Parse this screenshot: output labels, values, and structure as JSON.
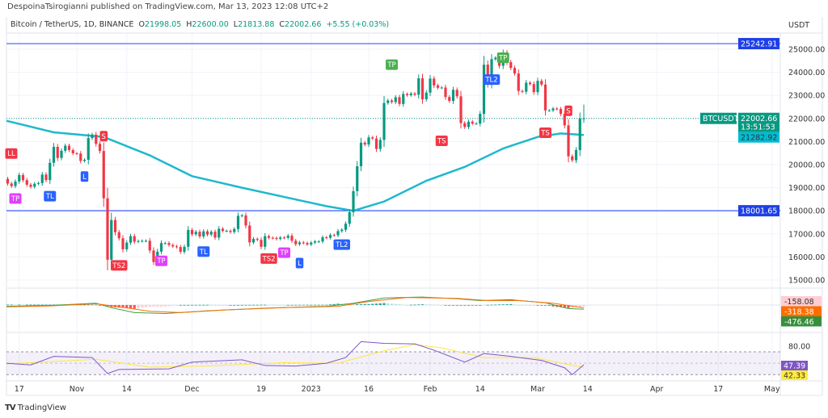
{
  "publisher_line": "DespoinaTsirogianni published on TradingView.com, Mar 13, 2023 12:08 UTC+2",
  "header": {
    "symbol": "Bitcoin / TetherUS, 1D, BINANCE",
    "open_label": "O",
    "open": "21998.05",
    "high_label": "H",
    "high": "22600.00",
    "low_label": "L",
    "low": "21813.88",
    "close_label": "C",
    "close": "22002.66",
    "change": "+5.55 (+0.03%)"
  },
  "footer": {
    "brand": "TradingView"
  },
  "colors": {
    "up": "#089981",
    "down": "#f23645",
    "ma": "#1fb8cd",
    "hline": "#3d5afe",
    "macd": "#43a047",
    "signal": "#ff6d00",
    "rsi": "#7e57c2",
    "rsi_ma": "#ffe642"
  },
  "chart_data": {
    "type": "candlestick",
    "currency_label": "USDT",
    "start_date": "2022-10-12",
    "close": [
      19150,
      19380,
      19180,
      19070,
      19270,
      19550,
      19330,
      19130,
      19040,
      19170,
      19200,
      19570,
      19330,
      20080,
      20770,
      20290,
      20600,
      20820,
      20630,
      20490,
      20480,
      20160,
      20210,
      21150,
      21300,
      20900,
      20590,
      18540,
      15880,
      17600,
      17070,
      16810,
      16330,
      16620,
      16900,
      16660,
      16690,
      16700,
      16700,
      16280,
      15780,
      16230,
      16600,
      16600,
      16520,
      16460,
      16430,
      16220,
      16440,
      17170,
      16980,
      17090,
      16890,
      17110,
      16970,
      17090,
      16840,
      17220,
      17130,
      17130,
      17080,
      17210,
      17780,
      17800,
      17360,
      16630,
      16780,
      16740,
      16440,
      16900,
      16830,
      16820,
      16780,
      16840,
      16830,
      16920,
      16700,
      16550,
      16630,
      16600,
      16540,
      16620,
      16670,
      16670,
      16850,
      16830,
      16950,
      16940,
      17120,
      17180,
      17440,
      17940,
      18850,
      19930,
      20950,
      20870,
      21180,
      21130,
      20680,
      21070,
      22670,
      22780,
      22710,
      22920,
      22630,
      23060,
      23010,
      23080,
      23030,
      23740,
      22830,
      23120,
      23730,
      23430,
      23330,
      23340,
      22930,
      22760,
      23240,
      22960,
      21800,
      21630,
      21860,
      21780,
      21780,
      22200,
      24330,
      23520,
      24570,
      24630,
      24280,
      24840,
      24440,
      24190,
      23950,
      23190,
      23160,
      23550,
      23490,
      23140,
      23630,
      23470,
      22350,
      22350,
      22430,
      22410,
      22200,
      21700,
      20360,
      20190,
      20630,
      21990,
      22002.66
    ],
    "last_bar": {
      "open": 21998.05,
      "high": 22600.0,
      "low": 21813.88,
      "close": 22002.66
    },
    "moving_average": [
      [
        "2022-10-12",
        21900
      ],
      [
        "2022-10-26",
        21400
      ],
      [
        "2022-11-08",
        21200
      ],
      [
        "2022-11-20",
        20400
      ],
      [
        "2022-12-01",
        19500
      ],
      [
        "2022-12-14",
        19000
      ],
      [
        "2022-12-25",
        18600
      ],
      [
        "2023-01-05",
        18200
      ],
      [
        "2023-01-12",
        18000
      ],
      [
        "2023-01-20",
        18400
      ],
      [
        "2023-01-31",
        19300
      ],
      [
        "2023-02-10",
        19900
      ],
      [
        "2023-02-20",
        20700
      ],
      [
        "2023-03-01",
        21200
      ],
      [
        "2023-03-07",
        21350
      ],
      [
        "2023-03-13",
        21282.92
      ]
    ],
    "y_ticks": [
      "25000.00",
      "24000.00",
      "23000.00",
      "22000.00",
      "21000.00",
      "20000.00",
      "19000.00",
      "18000.00",
      "17000.00",
      "16000.00",
      "15000.00"
    ],
    "horizontal_lines": [
      {
        "price": 25242.91,
        "label": "25242.91"
      },
      {
        "price": 18001.65,
        "label": "18001.65"
      }
    ],
    "price_tag": {
      "symbol": "BTCUSDT",
      "price": "22002.66",
      "countdown": "13:51:53",
      "ma_value": "21282.92"
    },
    "markers": [
      {
        "date": "2022-10-13",
        "price": 20500,
        "text": "LL",
        "color": "#f23645"
      },
      {
        "date": "2022-10-16",
        "price": 18550,
        "text": "TP",
        "color": "#e040fb"
      },
      {
        "date": "2022-10-25",
        "price": 18650,
        "text": "TL",
        "color": "#2962ff"
      },
      {
        "date": "2022-11-03",
        "price": 19500,
        "text": "L",
        "color": "#2962ff"
      },
      {
        "date": "2022-11-08",
        "price": 21250,
        "text": "S",
        "color": "#f23645"
      },
      {
        "date": "2022-11-12",
        "price": 15650,
        "text": "TS2",
        "color": "#f23645"
      },
      {
        "date": "2022-11-23",
        "price": 15850,
        "text": "TP",
        "color": "#e040fb"
      },
      {
        "date": "2022-12-04",
        "price": 16250,
        "text": "TL",
        "color": "#2962ff"
      },
      {
        "date": "2022-12-21",
        "price": 15950,
        "text": "TS2",
        "color": "#f23645"
      },
      {
        "date": "2022-12-25",
        "price": 16200,
        "text": "TP",
        "color": "#e040fb"
      },
      {
        "date": "2022-12-29",
        "price": 15750,
        "text": "L",
        "color": "#2962ff"
      },
      {
        "date": "2023-01-09",
        "price": 16550,
        "text": "TL2",
        "color": "#2962ff"
      },
      {
        "date": "2023-01-22",
        "price": 24350,
        "text": "TP",
        "color": "#4caf50"
      },
      {
        "date": "2023-02-04",
        "price": 21050,
        "text": "TS",
        "color": "#f23645"
      },
      {
        "date": "2023-02-17",
        "price": 23700,
        "text": "TL2",
        "color": "#2962ff"
      },
      {
        "date": "2023-02-20",
        "price": 24650,
        "text": "TP",
        "color": "#4caf50"
      },
      {
        "date": "2023-03-03",
        "price": 21400,
        "text": "TS",
        "color": "#f23645"
      },
      {
        "date": "2023-03-09",
        "price": 22350,
        "text": "S",
        "color": "#f23645"
      }
    ],
    "macd": {
      "macd_line": [
        [
          "2022-10-12",
          -150
        ],
        [
          "2022-10-25",
          -50
        ],
        [
          "2022-11-06",
          200
        ],
        [
          "2022-11-10",
          -300
        ],
        [
          "2022-11-16",
          -850
        ],
        [
          "2022-11-24",
          -950
        ],
        [
          "2022-12-05",
          -650
        ],
        [
          "2022-12-20",
          -350
        ],
        [
          "2023-01-05",
          -150
        ],
        [
          "2023-01-12",
          200
        ],
        [
          "2023-01-20",
          800
        ],
        [
          "2023-01-30",
          900
        ],
        [
          "2023-02-08",
          700
        ],
        [
          "2023-02-14",
          500
        ],
        [
          "2023-02-22",
          600
        ],
        [
          "2023-03-03",
          250
        ],
        [
          "2023-03-09",
          -400
        ],
        [
          "2023-03-13",
          -476.46
        ]
      ],
      "signal_line": [
        [
          "2022-10-12",
          -200
        ],
        [
          "2022-10-25",
          -100
        ],
        [
          "2022-11-06",
          150
        ],
        [
          "2022-11-12",
          -200
        ],
        [
          "2022-11-20",
          -700
        ],
        [
          "2022-11-28",
          -850
        ],
        [
          "2022-12-10",
          -550
        ],
        [
          "2022-12-25",
          -300
        ],
        [
          "2023-01-08",
          -150
        ],
        [
          "2023-01-16",
          400
        ],
        [
          "2023-01-26",
          850
        ],
        [
          "2023-02-08",
          750
        ],
        [
          "2023-02-16",
          500
        ],
        [
          "2023-02-24",
          500
        ],
        [
          "2023-03-05",
          200
        ],
        [
          "2023-03-13",
          -318.38
        ]
      ],
      "histogram_last": -158.08,
      "values": [
        "-158.08",
        "-318.38",
        "-476.46"
      ]
    },
    "rsi": {
      "rsi_line": [
        [
          "2022-10-12",
          50
        ],
        [
          "2022-10-20",
          47
        ],
        [
          "2022-10-26",
          62
        ],
        [
          "2022-11-05",
          60
        ],
        [
          "2022-11-09",
          32
        ],
        [
          "2022-11-12",
          39
        ],
        [
          "2022-11-25",
          40
        ],
        [
          "2022-12-01",
          52
        ],
        [
          "2022-12-14",
          56
        ],
        [
          "2022-12-20",
          46
        ],
        [
          "2022-12-28",
          45
        ],
        [
          "2023-01-05",
          50
        ],
        [
          "2023-01-10",
          60
        ],
        [
          "2023-01-14",
          88
        ],
        [
          "2023-01-20",
          85
        ],
        [
          "2023-01-28",
          84
        ],
        [
          "2023-02-02",
          73
        ],
        [
          "2023-02-10",
          52
        ],
        [
          "2023-02-15",
          67
        ],
        [
          "2023-02-22",
          62
        ],
        [
          "2023-03-02",
          55
        ],
        [
          "2023-03-08",
          42
        ],
        [
          "2023-03-10",
          30
        ],
        [
          "2023-03-13",
          47.39
        ]
      ],
      "rsi_ma": [
        [
          "2022-10-12",
          49
        ],
        [
          "2022-11-06",
          57
        ],
        [
          "2022-11-20",
          43
        ],
        [
          "2022-12-05",
          45
        ],
        [
          "2022-12-25",
          51
        ],
        [
          "2023-01-08",
          50
        ],
        [
          "2023-01-20",
          72
        ],
        [
          "2023-01-28",
          83
        ],
        [
          "2023-02-04",
          77
        ],
        [
          "2023-02-15",
          60
        ],
        [
          "2023-02-28",
          60
        ],
        [
          "2023-03-13",
          42.33
        ]
      ],
      "bands": [
        70,
        50,
        30
      ],
      "tick": "80.00",
      "values": [
        "47.39",
        "42.33"
      ]
    },
    "x_ticks": [
      [
        "17",
        "2022-10-17"
      ],
      [
        "Nov",
        "2022-11-01"
      ],
      [
        "14",
        "2022-11-14"
      ],
      [
        "Dec",
        "2022-12-01"
      ],
      [
        "19",
        "2022-12-19"
      ],
      [
        "2023",
        "2023-01-01"
      ],
      [
        "16",
        "2023-01-16"
      ],
      [
        "Feb",
        "2023-02-01"
      ],
      [
        "14",
        "2023-02-14"
      ],
      [
        "Mar",
        "2023-03-01"
      ],
      [
        "14",
        "2023-03-14"
      ],
      [
        "Apr",
        "2023-04-01"
      ],
      [
        "17",
        "2023-04-17"
      ],
      [
        "May",
        "2023-05-01"
      ]
    ]
  }
}
